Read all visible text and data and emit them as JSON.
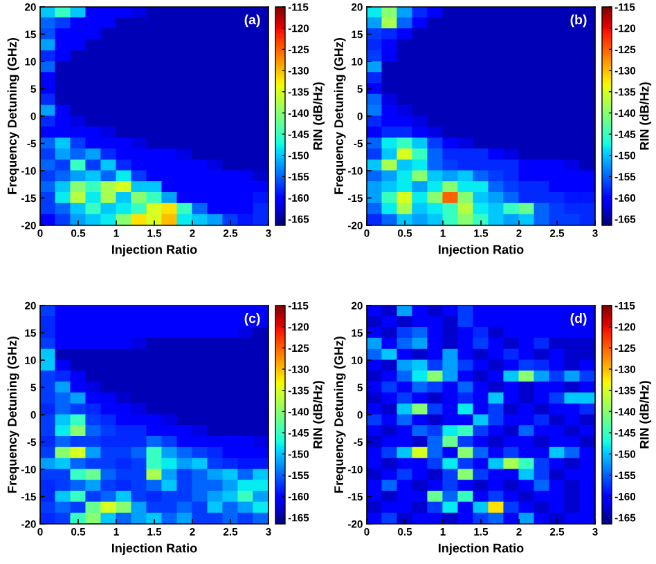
{
  "chart_data": [
    {
      "type": "heatmap",
      "xlabel": "Injection Ratio",
      "ylabel": "Frequency Detuning (GHz)",
      "clabel": "RIN (dB/Hz)",
      "annotations": [
        "(a)"
      ],
      "x": [
        0.1,
        0.3,
        0.5,
        0.7,
        0.9,
        1.1,
        1.3,
        1.5,
        1.7,
        1.9,
        2.1,
        2.3,
        2.5,
        2.7,
        2.9
      ],
      "y": [
        19,
        17,
        15,
        13,
        11,
        9,
        7,
        5,
        3,
        1,
        -1,
        -3,
        -5,
        -7,
        -9,
        -11,
        -13,
        -15,
        -17,
        -19
      ],
      "xlim": [
        0,
        3
      ],
      "xticks": [
        0,
        0.5,
        1,
        1.5,
        2,
        2.5,
        3
      ],
      "ylim": [
        -20,
        20
      ],
      "yticks": [
        -20,
        -15,
        -10,
        -5,
        0,
        5,
        10,
        15,
        20
      ],
      "clim": [
        -166.5,
        -115
      ],
      "cticks": [
        -165,
        -160,
        -155,
        -150,
        -145,
        -140,
        -135,
        -130,
        -125,
        -120,
        -115
      ],
      "cells": [
        [
          -150,
          -145,
          -150,
          -160,
          -160,
          -160,
          -162,
          -164,
          -164,
          -164,
          -164,
          -164,
          -164,
          -164,
          -164
        ],
        [
          -155,
          -157,
          -160,
          -160,
          -160,
          -164,
          -164,
          -164,
          -164,
          -164,
          -164,
          -164,
          -164,
          -164,
          -164
        ],
        [
          -156,
          -160,
          -160,
          -160,
          -164,
          -164,
          -164,
          -164,
          -164,
          -164,
          -164,
          -164,
          -164,
          -164,
          -164
        ],
        [
          -152,
          -160,
          -160,
          -164,
          -164,
          -164,
          -164,
          -164,
          -164,
          -164,
          -164,
          -164,
          -164,
          -164,
          -164
        ],
        [
          -158,
          -160,
          -164,
          -164,
          -164,
          -164,
          -164,
          -164,
          -164,
          -164,
          -164,
          -164,
          -164,
          -164,
          -164
        ],
        [
          -155,
          -164,
          -164,
          -164,
          -164,
          -164,
          -164,
          -164,
          -164,
          -164,
          -164,
          -164,
          -164,
          -164,
          -164
        ],
        [
          -160,
          -164,
          -164,
          -164,
          -164,
          -164,
          -164,
          -164,
          -164,
          -164,
          -164,
          -164,
          -164,
          -164,
          -164
        ],
        [
          -160,
          -164,
          -164,
          -164,
          -164,
          -164,
          -164,
          -164,
          -164,
          -164,
          -164,
          -164,
          -164,
          -164,
          -164
        ],
        [
          -158,
          -164,
          -164,
          -164,
          -164,
          -164,
          -164,
          -164,
          -164,
          -164,
          -164,
          -164,
          -164,
          -164,
          -164
        ],
        [
          -152,
          -161,
          -164,
          -164,
          -164,
          -164,
          -164,
          -164,
          -164,
          -164,
          -164,
          -164,
          -164,
          -164,
          -164
        ],
        [
          -158,
          -160,
          -162,
          -164,
          -164,
          -164,
          -164,
          -164,
          -164,
          -164,
          -164,
          -164,
          -164,
          -164,
          -164
        ],
        [
          -160,
          -160,
          -160,
          -160,
          -162,
          -164,
          -164,
          -164,
          -164,
          -164,
          -164,
          -164,
          -164,
          -164,
          -164
        ],
        [
          -155,
          -150,
          -157,
          -160,
          -160,
          -160,
          -162,
          -164,
          -164,
          -164,
          -164,
          -164,
          -164,
          -164,
          -164
        ],
        [
          -157,
          -152,
          -155,
          -152,
          -158,
          -160,
          -160,
          -160,
          -160,
          -162,
          -164,
          -164,
          -164,
          -164,
          -164
        ],
        [
          -155,
          -157,
          -145,
          -157,
          -150,
          -158,
          -160,
          -160,
          -160,
          -160,
          -160,
          -162,
          -164,
          -164,
          -164
        ],
        [
          -157,
          -155,
          -152,
          -150,
          -155,
          -148,
          -157,
          -160,
          -160,
          -160,
          -160,
          -160,
          -160,
          -161,
          -163
        ],
        [
          -155,
          -150,
          -140,
          -145,
          -138,
          -135,
          -150,
          -150,
          -160,
          -160,
          -160,
          -160,
          -160,
          -160,
          -160
        ],
        [
          -157,
          -148,
          -137,
          -148,
          -138,
          -150,
          -140,
          -145,
          -152,
          -160,
          -160,
          -160,
          -160,
          -160,
          -159
        ],
        [
          -157,
          -155,
          -150,
          -145,
          -150,
          -148,
          -145,
          -135,
          -132,
          -145,
          -155,
          -160,
          -160,
          -160,
          -158
        ],
        [
          -160,
          -157,
          -152,
          -150,
          -148,
          -140,
          -132,
          -135,
          -130,
          -148,
          -150,
          -152,
          -157,
          -159,
          -158
        ]
      ]
    },
    {
      "type": "heatmap",
      "xlabel": "Injection Ratio",
      "ylabel": "Frequency Detuning (GHz)",
      "clabel": "RIN (dB/Hz)",
      "annotations": [
        "(b)"
      ],
      "x": [
        0.1,
        0.3,
        0.5,
        0.7,
        0.9,
        1.1,
        1.3,
        1.5,
        1.7,
        1.9,
        2.1,
        2.3,
        2.5,
        2.7,
        2.9
      ],
      "y": [
        19,
        17,
        15,
        13,
        11,
        9,
        7,
        5,
        3,
        1,
        -1,
        -3,
        -5,
        -7,
        -9,
        -11,
        -13,
        -15,
        -17,
        -19
      ],
      "xlim": [
        0,
        3
      ],
      "xticks": [
        0,
        0.5,
        1,
        1.5,
        2,
        2.5,
        3
      ],
      "ylim": [
        -20,
        20
      ],
      "yticks": [
        -20,
        -15,
        -10,
        -5,
        0,
        5,
        10,
        15,
        20
      ],
      "clim": [
        -166.5,
        -115
      ],
      "cticks": [
        -165,
        -160,
        -155,
        -150,
        -145,
        -140,
        -135,
        -130,
        -125,
        -120,
        -115
      ],
      "cells": [
        [
          -148,
          -140,
          -152,
          -158,
          -160,
          -164,
          -164,
          -164,
          -164,
          -164,
          -164,
          -164,
          -164,
          -164,
          -164
        ],
        [
          -152,
          -138,
          -155,
          -160,
          -164,
          -164,
          -164,
          -164,
          -164,
          -164,
          -164,
          -164,
          -164,
          -164,
          -164
        ],
        [
          -157,
          -158,
          -160,
          -164,
          -164,
          -164,
          -164,
          -164,
          -164,
          -164,
          -164,
          -164,
          -164,
          -164,
          -164
        ],
        [
          -158,
          -160,
          -164,
          -164,
          -164,
          -164,
          -164,
          -164,
          -164,
          -164,
          -164,
          -164,
          -164,
          -164,
          -164
        ],
        [
          -157,
          -161,
          -164,
          -164,
          -164,
          -164,
          -164,
          -164,
          -164,
          -164,
          -164,
          -164,
          -164,
          -164,
          -164
        ],
        [
          -152,
          -164,
          -164,
          -164,
          -164,
          -164,
          -164,
          -164,
          -164,
          -164,
          -164,
          -164,
          -164,
          -164,
          -164
        ],
        [
          -158,
          -164,
          -164,
          -164,
          -164,
          -164,
          -164,
          -164,
          -164,
          -164,
          -164,
          -164,
          -164,
          -164,
          -164
        ],
        [
          -160,
          -164,
          -164,
          -164,
          -164,
          -164,
          -164,
          -164,
          -164,
          -164,
          -164,
          -164,
          -164,
          -164,
          -164
        ],
        [
          -155,
          -162,
          -164,
          -164,
          -164,
          -164,
          -164,
          -164,
          -164,
          -164,
          -164,
          -164,
          -164,
          -164,
          -164
        ],
        [
          -154,
          -160,
          -162,
          -164,
          -164,
          -164,
          -164,
          -164,
          -164,
          -164,
          -164,
          -164,
          -164,
          -164,
          -164
        ],
        [
          -158,
          -160,
          -160,
          -162,
          -164,
          -164,
          -164,
          -164,
          -164,
          -164,
          -164,
          -164,
          -164,
          -164,
          -164
        ],
        [
          -160,
          -158,
          -158,
          -160,
          -162,
          -164,
          -164,
          -164,
          -164,
          -164,
          -164,
          -164,
          -164,
          -164,
          -164
        ],
        [
          -155,
          -148,
          -145,
          -150,
          -157,
          -160,
          -162,
          -164,
          -164,
          -164,
          -164,
          -164,
          -164,
          -164,
          -164
        ],
        [
          -157,
          -150,
          -135,
          -145,
          -155,
          -158,
          -158,
          -158,
          -160,
          -162,
          -164,
          -164,
          -164,
          -164,
          -164
        ],
        [
          -150,
          -138,
          -150,
          -148,
          -155,
          -157,
          -158,
          -158,
          -158,
          -158,
          -160,
          -160,
          -160,
          -162,
          -164
        ],
        [
          -155,
          -152,
          -148,
          -140,
          -150,
          -152,
          -150,
          -155,
          -157,
          -158,
          -160,
          -160,
          -160,
          -160,
          -160
        ],
        [
          -152,
          -150,
          -148,
          -152,
          -148,
          -140,
          -148,
          -148,
          -155,
          -157,
          -158,
          -158,
          -160,
          -160,
          -160
        ],
        [
          -152,
          -145,
          -135,
          -148,
          -140,
          -125,
          -140,
          -150,
          -152,
          -155,
          -158,
          -158,
          -158,
          -159,
          -159
        ],
        [
          -155,
          -148,
          -138,
          -150,
          -148,
          -145,
          -137,
          -148,
          -150,
          -145,
          -142,
          -155,
          -157,
          -158,
          -158
        ],
        [
          -158,
          -155,
          -150,
          -152,
          -150,
          -145,
          -140,
          -145,
          -150,
          -152,
          -150,
          -155,
          -157,
          -157,
          -158
        ]
      ]
    },
    {
      "type": "heatmap",
      "xlabel": "Injection Ratio",
      "ylabel": "Frequency Detuning (GHz)",
      "clabel": "RIN (dB/Hz)",
      "annotations": [
        "(c)"
      ],
      "x": [
        0.1,
        0.3,
        0.5,
        0.7,
        0.9,
        1.1,
        1.3,
        1.5,
        1.7,
        1.9,
        2.1,
        2.3,
        2.5,
        2.7,
        2.9
      ],
      "y": [
        19,
        17,
        15,
        13,
        11,
        9,
        7,
        5,
        3,
        1,
        -1,
        -3,
        -5,
        -7,
        -9,
        -11,
        -13,
        -15,
        -17,
        -19
      ],
      "xlim": [
        0,
        3
      ],
      "xticks": [
        0,
        0.5,
        1,
        1.5,
        2,
        2.5,
        3
      ],
      "ylim": [
        -20,
        20
      ],
      "yticks": [
        -20,
        -15,
        -10,
        -5,
        0,
        5,
        10,
        15,
        20
      ],
      "clim": [
        -166.5,
        -115
      ],
      "cticks": [
        -165,
        -160,
        -155,
        -150,
        -145,
        -140,
        -135,
        -130,
        -125,
        -120,
        -115
      ],
      "cells": [
        [
          -157,
          -160,
          -160,
          -160,
          -160,
          -160,
          -160,
          -160,
          -160,
          -160,
          -160,
          -160,
          -160,
          -160,
          -160
        ],
        [
          -158,
          -160,
          -160,
          -160,
          -160,
          -160,
          -160,
          -160,
          -160,
          -160,
          -160,
          -160,
          -160,
          -160,
          -160
        ],
        [
          -158,
          -160,
          -160,
          -160,
          -160,
          -160,
          -160,
          -160,
          -160,
          -160,
          -160,
          -160,
          -160,
          -162,
          -164
        ],
        [
          -157,
          -160,
          -160,
          -160,
          -160,
          -160,
          -162,
          -164,
          -164,
          -164,
          -164,
          -164,
          -164,
          -164,
          -164
        ],
        [
          -150,
          -164,
          -164,
          -164,
          -164,
          -164,
          -164,
          -164,
          -164,
          -164,
          -164,
          -164,
          -164,
          -164,
          -164
        ],
        [
          -150,
          -161,
          -164,
          -164,
          -164,
          -164,
          -164,
          -164,
          -164,
          -164,
          -164,
          -164,
          -164,
          -164,
          -164
        ],
        [
          -157,
          -158,
          -161,
          -164,
          -164,
          -164,
          -164,
          -164,
          -164,
          -164,
          -164,
          -164,
          -164,
          -164,
          -164
        ],
        [
          -157,
          -152,
          -160,
          -162,
          -164,
          -164,
          -164,
          -164,
          -164,
          -164,
          -164,
          -164,
          -164,
          -164,
          -164
        ],
        [
          -157,
          -155,
          -152,
          -160,
          -161,
          -163,
          -164,
          -164,
          -164,
          -164,
          -164,
          -164,
          -164,
          -164,
          -164
        ],
        [
          -158,
          -155,
          -157,
          -158,
          -160,
          -160,
          -162,
          -164,
          -164,
          -164,
          -164,
          -164,
          -164,
          -164,
          -164
        ],
        [
          -157,
          -150,
          -145,
          -157,
          -158,
          -160,
          -160,
          -160,
          -162,
          -164,
          -164,
          -164,
          -164,
          -164,
          -164
        ],
        [
          -157,
          -148,
          -140,
          -155,
          -157,
          -158,
          -158,
          -160,
          -160,
          -160,
          -162,
          -164,
          -164,
          -164,
          -164
        ],
        [
          -158,
          -155,
          -157,
          -157,
          -158,
          -158,
          -158,
          -155,
          -157,
          -160,
          -160,
          -160,
          -160,
          -160,
          -162
        ],
        [
          -157,
          -140,
          -135,
          -152,
          -157,
          -157,
          -155,
          -145,
          -152,
          -155,
          -157,
          -158,
          -160,
          -160,
          -160
        ],
        [
          -152,
          -150,
          -155,
          -157,
          -157,
          -158,
          -157,
          -145,
          -148,
          -152,
          -150,
          -157,
          -158,
          -159,
          -159
        ],
        [
          -157,
          -157,
          -145,
          -142,
          -155,
          -157,
          -157,
          -138,
          -152,
          -157,
          -155,
          -152,
          -150,
          -155,
          -150
        ],
        [
          -158,
          -157,
          -155,
          -152,
          -157,
          -158,
          -157,
          -155,
          -150,
          -157,
          -155,
          -155,
          -152,
          -148,
          -148
        ],
        [
          -158,
          -150,
          -145,
          -157,
          -155,
          -150,
          -157,
          -158,
          -157,
          -157,
          -155,
          -152,
          -150,
          -145,
          -152
        ],
        [
          -157,
          -155,
          -157,
          -142,
          -135,
          -140,
          -152,
          -157,
          -157,
          -155,
          -157,
          -150,
          -155,
          -152,
          -148
        ],
        [
          -158,
          -157,
          -145,
          -140,
          -150,
          -155,
          -152,
          -150,
          -155,
          -152,
          -157,
          -157,
          -155,
          -157,
          -155
        ]
      ]
    },
    {
      "type": "heatmap",
      "xlabel": "Injection Ratio",
      "ylabel": "Frequency Detuning (GHz)",
      "clabel": "RIN (dB/Hz)",
      "annotations": [
        "(d)"
      ],
      "x": [
        0.1,
        0.3,
        0.5,
        0.7,
        0.9,
        1.1,
        1.3,
        1.5,
        1.7,
        1.9,
        2.1,
        2.3,
        2.5,
        2.7,
        2.9
      ],
      "y": [
        19,
        17,
        15,
        13,
        11,
        9,
        7,
        5,
        3,
        1,
        -1,
        -3,
        -5,
        -7,
        -9,
        -11,
        -13,
        -15,
        -17,
        -19
      ],
      "xlim": [
        0,
        3
      ],
      "xticks": [
        0,
        0.5,
        1,
        1.5,
        2,
        2.5,
        3
      ],
      "ylim": [
        -20,
        20
      ],
      "yticks": [
        -20,
        -15,
        -10,
        -5,
        0,
        5,
        10,
        15,
        20
      ],
      "clim": [
        -166.5,
        -115
      ],
      "cticks": [
        -165,
        -160,
        -155,
        -150,
        -145,
        -140,
        -135,
        -130,
        -125,
        -120,
        -115
      ],
      "cells": [
        [
          -160,
          -163,
          -152,
          -160,
          -163,
          -160,
          -157,
          -160,
          -160,
          -160,
          -160,
          -160,
          -160,
          -160,
          -160
        ],
        [
          -163,
          -160,
          -163,
          -160,
          -160,
          -163,
          -157,
          -160,
          -160,
          -160,
          -160,
          -160,
          -160,
          -160,
          -160
        ],
        [
          -160,
          -163,
          -157,
          -155,
          -160,
          -163,
          -160,
          -158,
          -163,
          -160,
          -160,
          -160,
          -160,
          -160,
          -160
        ],
        [
          -152,
          -160,
          -155,
          -152,
          -160,
          -163,
          -160,
          -157,
          -160,
          -163,
          -160,
          -158,
          -163,
          -163,
          -163
        ],
        [
          -155,
          -150,
          -160,
          -163,
          -160,
          -152,
          -160,
          -163,
          -160,
          -158,
          -160,
          -163,
          -160,
          -163,
          -163
        ],
        [
          -160,
          -163,
          -152,
          -150,
          -157,
          -152,
          -157,
          -160,
          -163,
          -160,
          -157,
          -158,
          -160,
          -163,
          -160
        ],
        [
          -163,
          -160,
          -155,
          -148,
          -140,
          -152,
          -160,
          -163,
          -160,
          -150,
          -140,
          -152,
          -157,
          -152,
          -157
        ],
        [
          -160,
          -157,
          -160,
          -155,
          -157,
          -160,
          -155,
          -160,
          -163,
          -160,
          -163,
          -160,
          -160,
          -163,
          -160
        ],
        [
          -163,
          -160,
          -157,
          -160,
          -163,
          -160,
          -158,
          -160,
          -150,
          -160,
          -163,
          -160,
          -157,
          -150,
          -150
        ],
        [
          -160,
          -163,
          -150,
          -140,
          -157,
          -160,
          -148,
          -160,
          -157,
          -163,
          -160,
          -163,
          -160,
          -160,
          -158
        ],
        [
          -157,
          -160,
          -155,
          -160,
          -163,
          -160,
          -160,
          -150,
          -157,
          -160,
          -160,
          -158,
          -163,
          -160,
          -163
        ],
        [
          -160,
          -163,
          -160,
          -155,
          -157,
          -148,
          -145,
          -157,
          -160,
          -163,
          -155,
          -160,
          -160,
          -163,
          -160
        ],
        [
          -163,
          -160,
          -160,
          -163,
          -155,
          -142,
          -157,
          -160,
          -163,
          -160,
          -160,
          -163,
          -160,
          -160,
          -163
        ],
        [
          -160,
          -157,
          -150,
          -135,
          -155,
          -160,
          -140,
          -155,
          -160,
          -157,
          -160,
          -160,
          -150,
          -155,
          -160
        ],
        [
          -160,
          -163,
          -160,
          -160,
          -157,
          -148,
          -157,
          -160,
          -150,
          -138,
          -145,
          -157,
          -160,
          -163,
          -160
        ],
        [
          -163,
          -160,
          -157,
          -160,
          -163,
          -157,
          -140,
          -157,
          -160,
          -160,
          -150,
          -157,
          -163,
          -160,
          -160
        ],
        [
          -160,
          -155,
          -160,
          -163,
          -160,
          -157,
          -160,
          -163,
          -160,
          -163,
          -160,
          -155,
          -160,
          -163,
          -160
        ],
        [
          -160,
          -163,
          -160,
          -160,
          -142,
          -155,
          -145,
          -160,
          -157,
          -160,
          -163,
          -160,
          -160,
          -163,
          -160
        ],
        [
          -163,
          -160,
          -160,
          -163,
          -157,
          -148,
          -160,
          -150,
          -132,
          -157,
          -160,
          -163,
          -160,
          -163,
          -160
        ],
        [
          -160,
          -157,
          -163,
          -160,
          -160,
          -163,
          -160,
          -157,
          -155,
          -160,
          -152,
          -160,
          -163,
          -160,
          -160
        ]
      ]
    }
  ]
}
